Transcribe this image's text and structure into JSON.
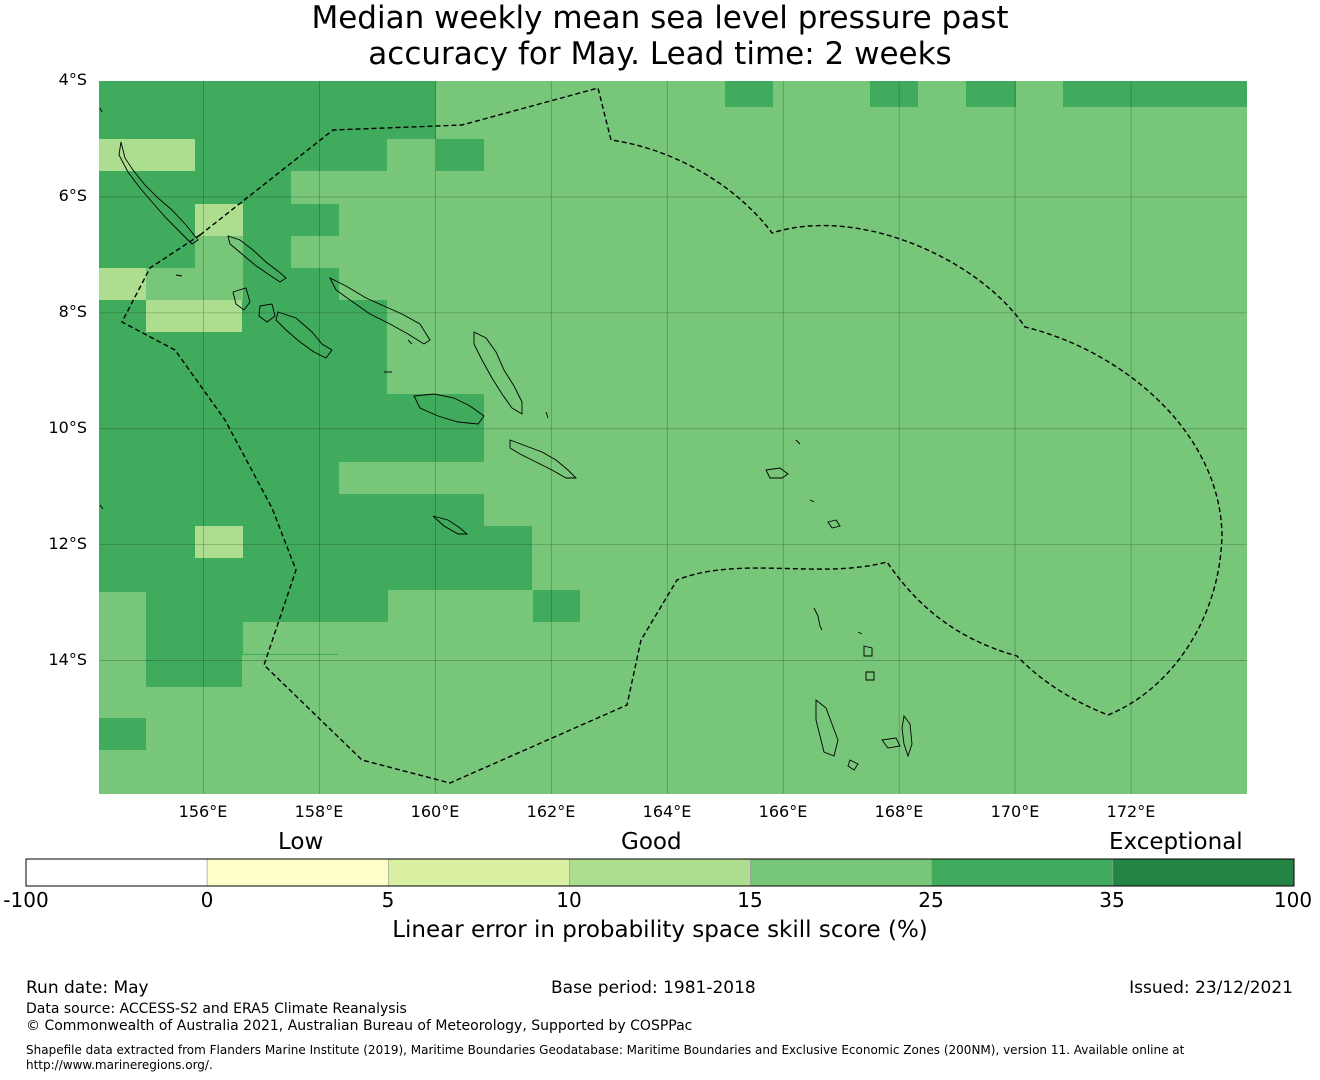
{
  "title": {
    "line1": "Median weekly mean sea level pressure past",
    "line2": "accuracy for May. Lead time: 2 weeks"
  },
  "map": {
    "lat_labels": [
      "4°S",
      "6°S",
      "8°S",
      "10°S",
      "12°S",
      "14°S"
    ],
    "lon_labels": [
      "156°E",
      "158°E",
      "160°E",
      "162°E",
      "164°E",
      "166°E",
      "168°E",
      "170°E",
      "172°E"
    ],
    "extent": {
      "lon_min": 154.2,
      "lon_max": 174.0,
      "lat_top": -4.0,
      "lat_bottom": -16.3
    },
    "colors": {
      "good25": "#78c679",
      "good35": "#41ab5d",
      "good15": "#addd8e"
    }
  },
  "colorbar": {
    "categories": [
      "Low",
      "Good",
      "Exceptional"
    ],
    "ticks": [
      "-100",
      "0",
      "5",
      "10",
      "15",
      "25",
      "35",
      "100"
    ],
    "colors": [
      "#ffffff",
      "#ffffcc",
      "#d9f0a3",
      "#addd8e",
      "#78c679",
      "#41ab5d",
      "#238443"
    ],
    "label": "Linear error in probability space skill score (%)"
  },
  "footer": {
    "run_date": "Run date: May",
    "base_period": "Base period: 1981-2018",
    "issued": "Issued: 23/12/2021",
    "data_source": "Data source: ACCESS-S2 and ERA5 Climate Reanalysis",
    "copyright": "© Commonwealth of Australia 2021, Australian Bureau of Meteorology, Supported by COSPPac",
    "shapefile_line1": "Shapefile data extracted from Flanders Marine Institute (2019), Maritime Boundaries Geodatabase: Maritime Boundaries and Exclusive Economic Zones (200NM), version 11. Available online at",
    "shapefile_line2": "http://www.marineregions.org/."
  }
}
